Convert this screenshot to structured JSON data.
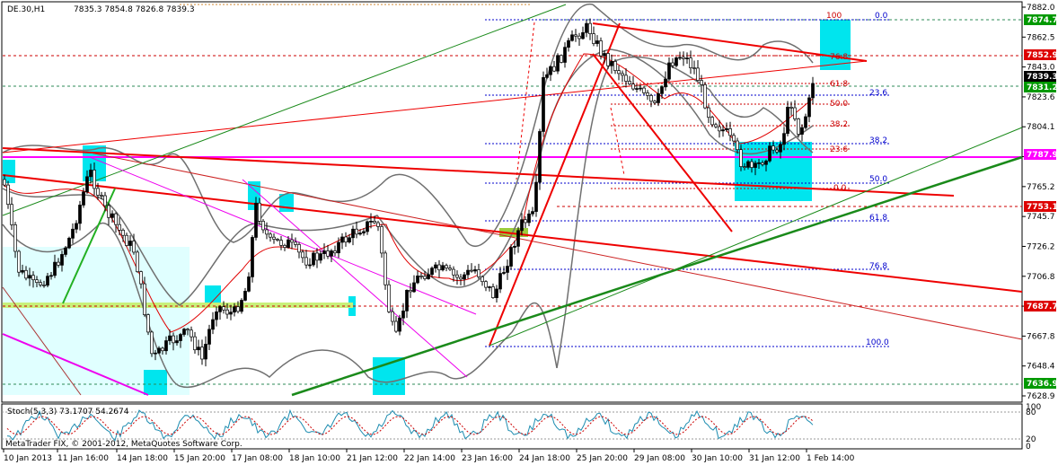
{
  "header": {
    "symbol_info": "DE.30,H1",
    "ohlc": "7835.3 7854.8 7826.8 7839.3"
  },
  "stochastic": {
    "label": "Stoch(5,3,3) 73.1707 54.2674",
    "levels": [
      "80",
      "100",
      "20",
      "0"
    ]
  },
  "footer": {
    "copyright": "MetaTrader FIX, © 2001-2012, MetaQuotes Software Corp."
  },
  "fib_upper": [
    "100",
    "76.8",
    "61.8",
    "50.0",
    "38.2",
    "23.6",
    "0.0"
  ],
  "fib_blue": [
    "0.0",
    "23.6",
    "38.2",
    "50.0",
    "61.8",
    "76.8",
    "100.0"
  ],
  "price_tags": {
    "t1": "7874.7",
    "t2": "7852.9",
    "t3": "7839.3",
    "t4": "7831.2",
    "t5": "7787.9",
    "t6": "7753.1",
    "t7": "7687.7",
    "t8": "7636.9"
  },
  "colors": {
    "up": "#008000",
    "down": "#ff0000",
    "magenta": "#ff00ff",
    "cyan": "#00ffff",
    "fib_red": "#cc0000",
    "fib_blue": "#0000cc"
  },
  "chart_data": {
    "type": "candlestick",
    "symbol": "DE.30",
    "timeframe": "H1",
    "y_ticks": [
      "7882.0",
      "7862.5",
      "7843.0",
      "7823.6",
      "7804.1",
      "7784.6",
      "7765.2",
      "7745.7",
      "7726.2",
      "7706.8",
      "7687.3",
      "7667.8",
      "7648.4",
      "7628.9"
    ],
    "ylim": [
      7628.9,
      7882.0
    ],
    "x_ticks": [
      "10 Jan 2013",
      "11 Jan 16:00",
      "14 Jan 18:00",
      "15 Jan 20:00",
      "17 Jan 08:00",
      "18 Jan 10:00",
      "21 Jan 12:00",
      "22 Jan 14:00",
      "23 Jan 16:00",
      "24 Jan 18:00",
      "25 Jan 20:00",
      "29 Jan 08:00",
      "30 Jan 10:00",
      "31 Jan 12:00",
      "1 Feb 14:00"
    ],
    "last_close": 7839.3
  }
}
